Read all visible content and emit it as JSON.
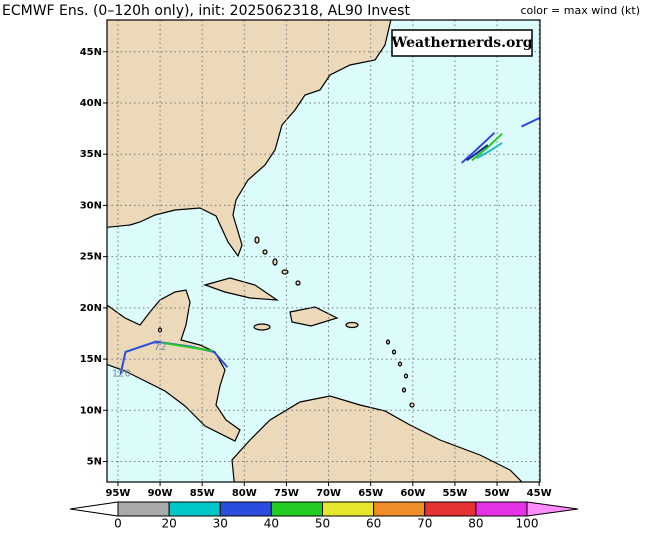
{
  "title": "ECMWF Ens. (0–120h only), init: 2025062318, AL90 Invest",
  "legend_title": "color = max wind (kt)",
  "watermark": "Weathernerds.org",
  "map": {
    "lon_range": [
      -96.3,
      -44.9
    ],
    "lat_range": [
      3.0,
      48.1
    ],
    "lon_ticks": [
      {
        "value": -95,
        "label": "95W"
      },
      {
        "value": -90,
        "label": "90W"
      },
      {
        "value": -85,
        "label": "85W"
      },
      {
        "value": -80,
        "label": "80W"
      },
      {
        "value": -75,
        "label": "75W"
      },
      {
        "value": -70,
        "label": "70W"
      },
      {
        "value": -65,
        "label": "65W"
      },
      {
        "value": -60,
        "label": "60W"
      },
      {
        "value": -55,
        "label": "55W"
      },
      {
        "value": -50,
        "label": "50W"
      },
      {
        "value": -45,
        "label": "45W"
      }
    ],
    "lat_ticks": [
      {
        "value": 45,
        "label": "45N"
      },
      {
        "value": 40,
        "label": "40N"
      },
      {
        "value": 35,
        "label": "35N"
      },
      {
        "value": 30,
        "label": "30N"
      },
      {
        "value": 25,
        "label": "25N"
      },
      {
        "value": 20,
        "label": "20N"
      },
      {
        "value": 15,
        "label": "15N"
      },
      {
        "value": 10,
        "label": "10N"
      },
      {
        "value": 5,
        "label": "5N"
      }
    ],
    "tracks": [
      {
        "color": "#2a4de0",
        "lon": [
          -54.2,
          -52.5,
          -50.3
        ],
        "lat": [
          34.15,
          35.4,
          37.1
        ]
      },
      {
        "color": "#22cc22",
        "lon": [
          -53.0,
          -51.2,
          -49.4
        ],
        "lat": [
          34.4,
          35.6,
          37.0
        ]
      },
      {
        "color": "#22bbcc",
        "lon": [
          -52.4,
          -50.9,
          -49.4
        ],
        "lat": [
          34.6,
          35.3,
          36.1
        ]
      },
      {
        "color": "#1a2a80",
        "lon": [
          -53.6,
          -52.4,
          -51.1
        ],
        "lat": [
          34.4,
          35.1,
          35.9
        ]
      },
      {
        "color": "#2a4de0",
        "lon": [
          -47.1,
          -44.8
        ],
        "lat": [
          37.7,
          38.6
        ]
      },
      {
        "color": "#2a4de0",
        "lon": [
          -94.7,
          -94.1,
          -90.5,
          -86.3,
          -83.6,
          -82.0
        ],
        "lat": [
          13.5,
          15.7,
          16.7,
          16.2,
          15.7,
          14.2
        ]
      },
      {
        "color": "#22cc22",
        "lon": [
          -89.9,
          -86.8,
          -83.8
        ],
        "lat": [
          16.6,
          16.2,
          15.8
        ]
      }
    ],
    "annotations": [
      {
        "text": "72",
        "lon": -90.0,
        "lat": 16.2
      },
      {
        "text": "120",
        "lon": -94.6,
        "lat": 13.6
      }
    ]
  },
  "colorbar": {
    "ticks": [
      0,
      20,
      30,
      40,
      50,
      60,
      70,
      80,
      100
    ],
    "colors": [
      "#a9a9a9",
      "#00c8c8",
      "#2a4de0",
      "#22cc22",
      "#e6e62a",
      "#f08c2a",
      "#e63232",
      "#e632e6"
    ],
    "under_color": "#ffffff",
    "over_color": "#ff8cff"
  }
}
